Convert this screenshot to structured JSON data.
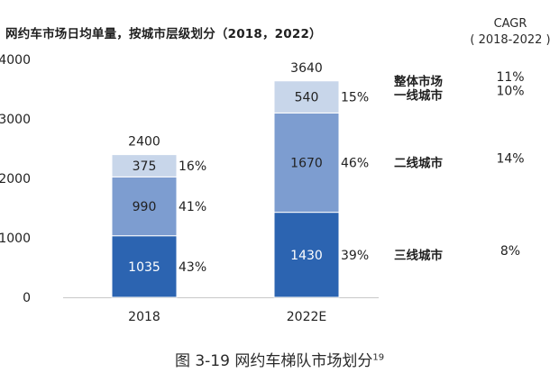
{
  "chart_data": {
    "type": "bar",
    "stacked": true,
    "title": "网约车市场日均单量，按城市层级划分（2018，2022）",
    "categories": [
      "2018",
      "2022E"
    ],
    "series": [
      {
        "name": "三线城市",
        "values": [
          1035,
          1430
        ],
        "shares": [
          "43%",
          "39%"
        ],
        "value_labels": [
          "1035",
          "1430"
        ],
        "color": "#2c64b1",
        "label_color": "#ffffff",
        "cagr": "8%"
      },
      {
        "name": "二线城市",
        "values": [
          990,
          1670
        ],
        "shares": [
          "41%",
          "46%"
        ],
        "value_labels": [
          "990",
          "1670"
        ],
        "color": "#7d9dd0",
        "label_color": "#222222",
        "cagr": "14%"
      },
      {
        "name": "一线城市",
        "values": [
          375,
          540
        ],
        "shares": [
          "16%",
          "15%"
        ],
        "value_labels": [
          "375",
          "540"
        ],
        "color": "#c8d6ea",
        "label_color": "#222222",
        "cagr": "10%"
      }
    ],
    "totals": [
      "2400",
      "3640"
    ],
    "total_market": {
      "name": "整体市场",
      "cagr": "11%"
    },
    "cagr_header": [
      "CAGR",
      "( 2018-2022 )"
    ],
    "ylim": [
      0,
      4000
    ],
    "yticks": [
      "0",
      "1000",
      "2000",
      "3000",
      "4000"
    ],
    "ytick_values": [
      0,
      1000,
      2000,
      3000,
      4000
    ],
    "xlabel": "",
    "ylabel": "",
    "grid": false,
    "axis_color": "#c9c9c9"
  },
  "caption": {
    "text": "图 3-19  网约车梯队市场划分",
    "superscript": "19"
  }
}
